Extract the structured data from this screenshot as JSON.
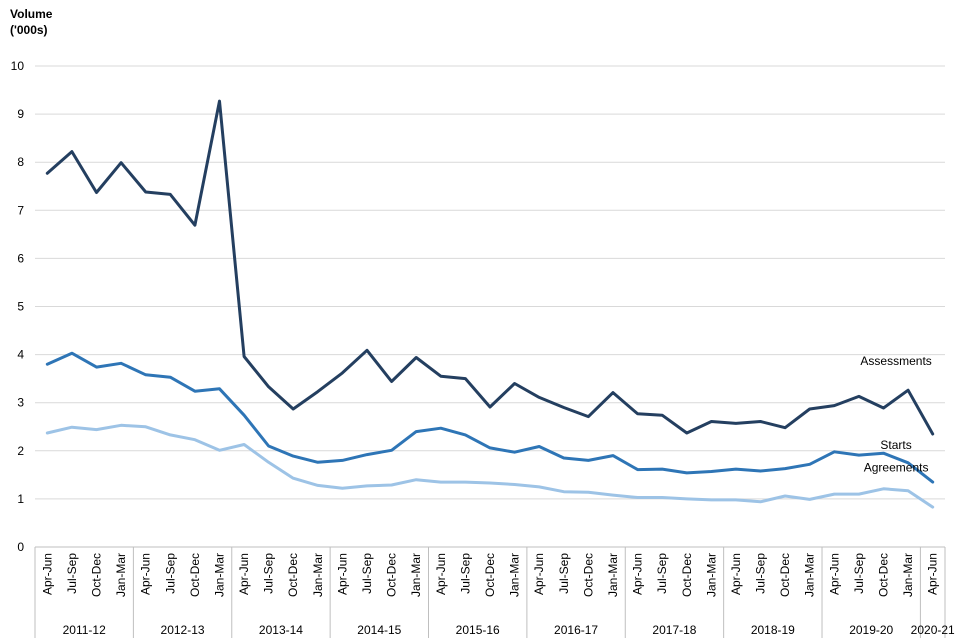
{
  "chart_data": {
    "type": "line",
    "ylabel_line1": "Volume",
    "ylabel_line2": "('000s)",
    "ylim": [
      0,
      10
    ],
    "yticks": [
      0,
      1,
      2,
      3,
      4,
      5,
      6,
      7,
      8,
      9,
      10
    ],
    "grid": true,
    "categories": [
      "Apr-Jun",
      "Jul-Sep",
      "Oct-Dec",
      "Jan-Mar",
      "Apr-Jun",
      "Jul-Sep",
      "Oct-Dec",
      "Jan-Mar",
      "Apr-Jun",
      "Jul-Sep",
      "Oct-Dec",
      "Jan-Mar",
      "Apr-Jun",
      "Jul-Sep",
      "Oct-Dec",
      "Jan-Mar",
      "Apr-Jun",
      "Jul-Sep",
      "Oct-Dec",
      "Jan-Mar",
      "Apr-Jun",
      "Jul-Sep",
      "Oct-Dec",
      "Jan-Mar",
      "Apr-Jun",
      "Jul-Sep",
      "Oct-Dec",
      "Jan-Mar",
      "Apr-Jun",
      "Jul-Sep",
      "Oct-Dec",
      "Jan-Mar",
      "Apr-Jun",
      "Jul-Sep",
      "Oct-Dec",
      "Jan-Mar",
      "Apr-Jun"
    ],
    "groups": [
      {
        "label": "2011-12",
        "count": 4
      },
      {
        "label": "2012-13",
        "count": 4
      },
      {
        "label": "2013-14",
        "count": 4
      },
      {
        "label": "2014-15",
        "count": 4
      },
      {
        "label": "2015-16",
        "count": 4
      },
      {
        "label": "2016-17",
        "count": 4
      },
      {
        "label": "2017-18",
        "count": 4
      },
      {
        "label": "2018-19",
        "count": 4
      },
      {
        "label": "2019-20",
        "count": 4
      },
      {
        "label": "2020-21",
        "count": 1
      }
    ],
    "series": [
      {
        "name": "Assessments",
        "color": "#243f60",
        "values": [
          7.77,
          8.22,
          7.37,
          7.99,
          7.38,
          7.33,
          6.69,
          9.27,
          3.96,
          3.33,
          2.87,
          3.23,
          3.62,
          4.09,
          3.44,
          3.94,
          3.55,
          3.5,
          2.91,
          3.4,
          3.11,
          2.9,
          2.71,
          3.21,
          2.77,
          2.74,
          2.37,
          2.61,
          2.57,
          2.61,
          2.48,
          2.87,
          2.94,
          3.13,
          2.89,
          3.26,
          2.35
        ]
      },
      {
        "name": "Starts",
        "color": "#2e75b6",
        "values": [
          3.8,
          4.03,
          3.74,
          3.82,
          3.58,
          3.53,
          3.24,
          3.29,
          2.74,
          2.1,
          1.89,
          1.76,
          1.8,
          1.92,
          2.01,
          2.4,
          2.47,
          2.33,
          2.06,
          1.97,
          2.09,
          1.85,
          1.8,
          1.9,
          1.61,
          1.62,
          1.54,
          1.57,
          1.62,
          1.58,
          1.63,
          1.72,
          1.98,
          1.91,
          1.95,
          1.75,
          1.35
        ]
      },
      {
        "name": "Agreements",
        "color": "#9dc3e6",
        "values": [
          2.37,
          2.49,
          2.44,
          2.53,
          2.5,
          2.33,
          2.23,
          2.01,
          2.13,
          1.76,
          1.43,
          1.28,
          1.22,
          1.27,
          1.29,
          1.4,
          1.35,
          1.35,
          1.33,
          1.3,
          1.25,
          1.15,
          1.14,
          1.08,
          1.03,
          1.03,
          1.0,
          0.98,
          0.98,
          0.94,
          1.06,
          0.99,
          1.1,
          1.1,
          1.21,
          1.17,
          0.83
        ]
      }
    ]
  }
}
